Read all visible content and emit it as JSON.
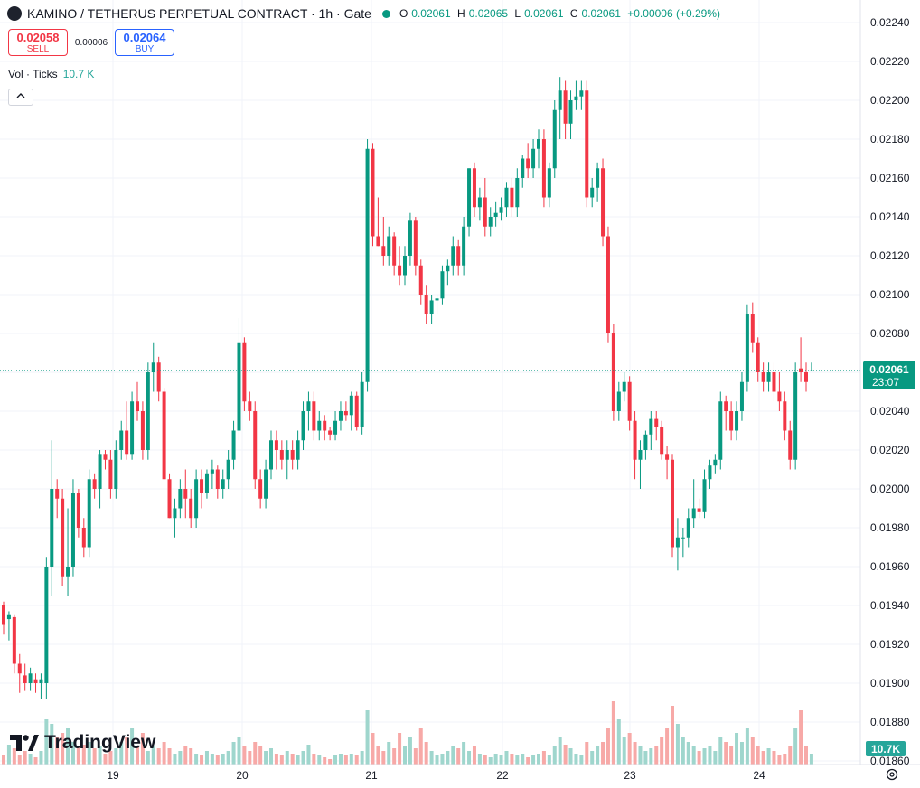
{
  "header": {
    "title": "KAMINO / TETHERUS PERPETUAL CONTRACT · 1h · Gate",
    "open_label": "O",
    "open": "0.02061",
    "high_label": "H",
    "high": "0.02065",
    "low_label": "L",
    "low": "0.02061",
    "close_label": "C",
    "close": "0.02061",
    "change": "+0.00006 (+0.29%)"
  },
  "trade": {
    "sell_price": "0.02058",
    "sell_label": "SELL",
    "spread": "0.00006",
    "buy_price": "0.02064",
    "buy_label": "BUY"
  },
  "volume_legend": {
    "label": "Vol · Ticks",
    "value": "10.7 K"
  },
  "brand": "TradingView",
  "colors": {
    "up": "#089981",
    "down": "#f23645",
    "vol_up": "#9fd6cd",
    "vol_down": "#f7a9a7",
    "grid": "#f0f3fa"
  },
  "icons": {
    "collapse": "chevron-up-icon",
    "settings": "gear-icon",
    "logo": "tradingview-logo-icon"
  },
  "chart_data": {
    "type": "candlestick",
    "y_ticks": [
      "0.02240",
      "0.02220",
      "0.02200",
      "0.02180",
      "0.02160",
      "0.02140",
      "0.02120",
      "0.02100",
      "0.02080",
      "0.02060",
      "0.02040",
      "0.02020",
      "0.02000",
      "0.01980",
      "0.01960",
      "0.01940",
      "0.01920",
      "0.01900",
      "0.01880",
      "0.01860"
    ],
    "ylim": [
      0.01858,
      0.02245
    ],
    "x_ticks": [
      "19",
      "20",
      "21",
      "22",
      "23",
      "24"
    ],
    "last_price": "0.02061",
    "countdown": "23:07",
    "volume_last": "10.7K",
    "candles": [
      [
        0.0194,
        0.01942,
        0.01925,
        0.0193
      ],
      [
        0.01933,
        0.01937,
        0.01922,
        0.01935
      ],
      [
        0.01934,
        0.01935,
        0.01905,
        0.0191
      ],
      [
        0.0191,
        0.01915,
        0.01895,
        0.01905
      ],
      [
        0.01904,
        0.0191,
        0.01896,
        0.019
      ],
      [
        0.019,
        0.01908,
        0.01896,
        0.01905
      ],
      [
        0.01902,
        0.01905,
        0.01895,
        0.019
      ],
      [
        0.019,
        0.01905,
        0.01892,
        0.01902
      ],
      [
        0.019,
        0.01965,
        0.01892,
        0.0196
      ],
      [
        0.0196,
        0.02025,
        0.01945,
        0.02
      ],
      [
        0.02,
        0.02005,
        0.01985,
        0.01995
      ],
      [
        0.01995,
        0.02,
        0.0195,
        0.01955
      ],
      [
        0.01955,
        0.0199,
        0.01945,
        0.0196
      ],
      [
        0.0196,
        0.02005,
        0.01955,
        0.01998
      ],
      [
        0.01998,
        0.02,
        0.01975,
        0.0198
      ],
      [
        0.0198,
        0.01985,
        0.01965,
        0.0197
      ],
      [
        0.0197,
        0.0201,
        0.01965,
        0.02005
      ],
      [
        0.02005,
        0.02008,
        0.01995,
        0.02
      ],
      [
        0.02,
        0.0202,
        0.0199,
        0.02018
      ],
      [
        0.02018,
        0.0202,
        0.0201,
        0.02015
      ],
      [
        0.02015,
        0.0202,
        0.01995,
        0.02
      ],
      [
        0.02,
        0.02025,
        0.01995,
        0.0202
      ],
      [
        0.0202,
        0.02035,
        0.02015,
        0.0203
      ],
      [
        0.0203,
        0.02045,
        0.02015,
        0.02018
      ],
      [
        0.02018,
        0.0205,
        0.02015,
        0.02045
      ],
      [
        0.02045,
        0.02055,
        0.02035,
        0.0204
      ],
      [
        0.0204,
        0.02045,
        0.02015,
        0.0202
      ],
      [
        0.0202,
        0.02065,
        0.02015,
        0.0206
      ],
      [
        0.0206,
        0.02075,
        0.0205,
        0.02065
      ],
      [
        0.02065,
        0.02068,
        0.02045,
        0.0205
      ],
      [
        0.0205,
        0.02052,
        0.02005,
        0.02005
      ],
      [
        0.02005,
        0.02008,
        0.01985,
        0.01985
      ],
      [
        0.01985,
        0.01995,
        0.01975,
        0.0199
      ],
      [
        0.0199,
        0.02005,
        0.01985,
        0.02
      ],
      [
        0.02,
        0.0201,
        0.01985,
        0.01995
      ],
      [
        0.01995,
        0.02,
        0.0198,
        0.01985
      ],
      [
        0.01985,
        0.0201,
        0.0198,
        0.02005
      ],
      [
        0.02005,
        0.0201,
        0.0199,
        0.01998
      ],
      [
        0.01998,
        0.0201,
        0.01995,
        0.02008
      ],
      [
        0.02008,
        0.02015,
        0.02,
        0.0201
      ],
      [
        0.0201,
        0.02012,
        0.01995,
        0.02
      ],
      [
        0.02,
        0.0201,
        0.01995,
        0.02005
      ],
      [
        0.02005,
        0.0202,
        0.02,
        0.02015
      ],
      [
        0.02015,
        0.02035,
        0.0201,
        0.0203
      ],
      [
        0.0203,
        0.02088,
        0.02025,
        0.02075
      ],
      [
        0.02075,
        0.02078,
        0.0204,
        0.02045
      ],
      [
        0.02045,
        0.0205,
        0.02035,
        0.0204
      ],
      [
        0.0204,
        0.02045,
        0.02,
        0.02005
      ],
      [
        0.02005,
        0.0201,
        0.0199,
        0.01995
      ],
      [
        0.01995,
        0.02015,
        0.0199,
        0.0201
      ],
      [
        0.0201,
        0.0203,
        0.02005,
        0.02025
      ],
      [
        0.02025,
        0.0203,
        0.0201,
        0.0202
      ],
      [
        0.0202,
        0.02025,
        0.0201,
        0.02015
      ],
      [
        0.02015,
        0.02025,
        0.02005,
        0.0202
      ],
      [
        0.0202,
        0.02025,
        0.0201,
        0.02015
      ],
      [
        0.02015,
        0.0203,
        0.0201,
        0.02025
      ],
      [
        0.02025,
        0.02045,
        0.0202,
        0.0204
      ],
      [
        0.0204,
        0.0205,
        0.0203,
        0.02045
      ],
      [
        0.02045,
        0.0205,
        0.02025,
        0.0203
      ],
      [
        0.0203,
        0.0204,
        0.02025,
        0.02035
      ],
      [
        0.02035,
        0.02038,
        0.02025,
        0.0203
      ],
      [
        0.0203,
        0.02032,
        0.02025,
        0.02028
      ],
      [
        0.02028,
        0.0204,
        0.02025,
        0.02035
      ],
      [
        0.02035,
        0.02045,
        0.0203,
        0.0204
      ],
      [
        0.0204,
        0.02045,
        0.02035,
        0.02038
      ],
      [
        0.02038,
        0.0205,
        0.0203,
        0.02048
      ],
      [
        0.02048,
        0.0205,
        0.0203,
        0.02032
      ],
      [
        0.02032,
        0.0206,
        0.02028,
        0.02055
      ],
      [
        0.02055,
        0.0218,
        0.0205,
        0.02175
      ],
      [
        0.02175,
        0.02178,
        0.02125,
        0.0213
      ],
      [
        0.0213,
        0.0215,
        0.02125,
        0.02125
      ],
      [
        0.02125,
        0.0214,
        0.02115,
        0.0212
      ],
      [
        0.0212,
        0.02135,
        0.02115,
        0.0213
      ],
      [
        0.0213,
        0.02132,
        0.0211,
        0.02115
      ],
      [
        0.02115,
        0.02125,
        0.02105,
        0.0211
      ],
      [
        0.0211,
        0.02125,
        0.02105,
        0.0212
      ],
      [
        0.0212,
        0.02142,
        0.02115,
        0.02138
      ],
      [
        0.02138,
        0.0214,
        0.0211,
        0.02115
      ],
      [
        0.02115,
        0.02118,
        0.02095,
        0.021
      ],
      [
        0.021,
        0.02105,
        0.02085,
        0.0209
      ],
      [
        0.0209,
        0.021,
        0.02085,
        0.02097
      ],
      [
        0.02097,
        0.021,
        0.0209,
        0.02098
      ],
      [
        0.02098,
        0.02115,
        0.02095,
        0.02112
      ],
      [
        0.02112,
        0.02118,
        0.02105,
        0.02115
      ],
      [
        0.02115,
        0.0213,
        0.0211,
        0.02125
      ],
      [
        0.02125,
        0.02128,
        0.0211,
        0.02115
      ],
      [
        0.02115,
        0.0214,
        0.0211,
        0.02135
      ],
      [
        0.02135,
        0.02165,
        0.0213,
        0.02165
      ],
      [
        0.02165,
        0.02168,
        0.0214,
        0.02145
      ],
      [
        0.02145,
        0.02155,
        0.02138,
        0.0215
      ],
      [
        0.0215,
        0.0216,
        0.0213,
        0.02135
      ],
      [
        0.02135,
        0.02145,
        0.0213,
        0.0214
      ],
      [
        0.0214,
        0.02148,
        0.02135,
        0.02142
      ],
      [
        0.02142,
        0.0215,
        0.02138,
        0.02145
      ],
      [
        0.02145,
        0.02158,
        0.0214,
        0.02155
      ],
      [
        0.02155,
        0.0216,
        0.0214,
        0.02145
      ],
      [
        0.02145,
        0.02165,
        0.0214,
        0.0216
      ],
      [
        0.0216,
        0.02172,
        0.02155,
        0.0217
      ],
      [
        0.0217,
        0.02178,
        0.0216,
        0.02165
      ],
      [
        0.02165,
        0.0218,
        0.0216,
        0.02175
      ],
      [
        0.02175,
        0.02185,
        0.02165,
        0.0218
      ],
      [
        0.0218,
        0.02185,
        0.02145,
        0.0215
      ],
      [
        0.0215,
        0.02168,
        0.02145,
        0.02165
      ],
      [
        0.02165,
        0.022,
        0.0216,
        0.02195
      ],
      [
        0.02195,
        0.02212,
        0.0218,
        0.02205
      ],
      [
        0.02205,
        0.0221,
        0.0218,
        0.02188
      ],
      [
        0.02188,
        0.02205,
        0.0218,
        0.022
      ],
      [
        0.022,
        0.0221,
        0.02195,
        0.02202
      ],
      [
        0.02202,
        0.0221,
        0.02195,
        0.02205
      ],
      [
        0.02205,
        0.0221,
        0.02145,
        0.0215
      ],
      [
        0.0215,
        0.0216,
        0.02145,
        0.02155
      ],
      [
        0.02155,
        0.02168,
        0.02148,
        0.02165
      ],
      [
        0.02165,
        0.0217,
        0.02125,
        0.0213
      ],
      [
        0.0213,
        0.02135,
        0.02075,
        0.0208
      ],
      [
        0.0208,
        0.02085,
        0.02035,
        0.0204
      ],
      [
        0.0204,
        0.02055,
        0.02035,
        0.0205
      ],
      [
        0.0205,
        0.0206,
        0.02045,
        0.02055
      ],
      [
        0.02055,
        0.02058,
        0.0203,
        0.02035
      ],
      [
        0.02035,
        0.0204,
        0.02005,
        0.02015
      ],
      [
        0.02015,
        0.02025,
        0.02,
        0.0202
      ],
      [
        0.0202,
        0.0203,
        0.02015,
        0.02028
      ],
      [
        0.02028,
        0.0204,
        0.0202,
        0.02036
      ],
      [
        0.02036,
        0.0204,
        0.02025,
        0.02032
      ],
      [
        0.02032,
        0.02035,
        0.02015,
        0.02018
      ],
      [
        0.02018,
        0.02022,
        0.02005,
        0.02015
      ],
      [
        0.02015,
        0.02018,
        0.01965,
        0.0197
      ],
      [
        0.0197,
        0.01985,
        0.01958,
        0.01975
      ],
      [
        0.01975,
        0.0198,
        0.01965,
        0.01975
      ],
      [
        0.01975,
        0.0199,
        0.0197,
        0.01985
      ],
      [
        0.01985,
        0.02005,
        0.0198,
        0.0199
      ],
      [
        0.0199,
        0.01995,
        0.01985,
        0.01988
      ],
      [
        0.01988,
        0.0201,
        0.01985,
        0.02005
      ],
      [
        0.02005,
        0.02015,
        0.02,
        0.02012
      ],
      [
        0.02012,
        0.02018,
        0.02008,
        0.02015
      ],
      [
        0.02015,
        0.0205,
        0.0201,
        0.02045
      ],
      [
        0.02045,
        0.02048,
        0.0203,
        0.0204
      ],
      [
        0.0204,
        0.02045,
        0.02025,
        0.0203
      ],
      [
        0.0203,
        0.02045,
        0.02025,
        0.0204
      ],
      [
        0.0204,
        0.0206,
        0.02035,
        0.02055
      ],
      [
        0.02055,
        0.02095,
        0.0205,
        0.0209
      ],
      [
        0.0209,
        0.02096,
        0.0207,
        0.02075
      ],
      [
        0.02075,
        0.02078,
        0.02055,
        0.0206
      ],
      [
        0.0206,
        0.02065,
        0.0205,
        0.02055
      ],
      [
        0.02055,
        0.02065,
        0.0205,
        0.0206
      ],
      [
        0.0206,
        0.02065,
        0.02045,
        0.0205
      ],
      [
        0.0205,
        0.0206,
        0.0204,
        0.02045
      ],
      [
        0.02045,
        0.0205,
        0.02025,
        0.0203
      ],
      [
        0.0203,
        0.02035,
        0.0201,
        0.02015
      ],
      [
        0.02015,
        0.02065,
        0.0201,
        0.0206
      ],
      [
        0.02062,
        0.02078,
        0.02055,
        0.0206
      ],
      [
        0.0206,
        0.02065,
        0.0205,
        0.02055
      ],
      [
        0.02061,
        0.02065,
        0.02061,
        0.02061
      ]
    ],
    "volumes": [
      0.1,
      0.22,
      0.18,
      0.1,
      0.15,
      0.12,
      0.08,
      0.15,
      0.5,
      0.45,
      0.3,
      0.35,
      0.4,
      0.25,
      0.2,
      0.22,
      0.25,
      0.18,
      0.2,
      0.12,
      0.15,
      0.18,
      0.25,
      0.3,
      0.4,
      0.2,
      0.35,
      0.15,
      0.2,
      0.18,
      0.25,
      0.18,
      0.12,
      0.15,
      0.2,
      0.18,
      0.12,
      0.1,
      0.15,
      0.12,
      0.1,
      0.12,
      0.15,
      0.25,
      0.3,
      0.2,
      0.15,
      0.25,
      0.2,
      0.15,
      0.18,
      0.12,
      0.1,
      0.15,
      0.12,
      0.1,
      0.15,
      0.22,
      0.12,
      0.1,
      0.08,
      0.06,
      0.1,
      0.12,
      0.1,
      0.12,
      0.1,
      0.15,
      0.6,
      0.35,
      0.2,
      0.15,
      0.25,
      0.18,
      0.35,
      0.2,
      0.3,
      0.18,
      0.4,
      0.25,
      0.15,
      0.1,
      0.12,
      0.15,
      0.2,
      0.18,
      0.25,
      0.15,
      0.2,
      0.12,
      0.1,
      0.08,
      0.12,
      0.1,
      0.15,
      0.12,
      0.1,
      0.12,
      0.08,
      0.1,
      0.12,
      0.15,
      0.1,
      0.2,
      0.3,
      0.22,
      0.18,
      0.12,
      0.1,
      0.25,
      0.15,
      0.2,
      0.25,
      0.4,
      0.7,
      0.5,
      0.3,
      0.35,
      0.25,
      0.2,
      0.15,
      0.18,
      0.2,
      0.3,
      0.4,
      0.65,
      0.45,
      0.3,
      0.25,
      0.2,
      0.15,
      0.18,
      0.2,
      0.15,
      0.3,
      0.25,
      0.2,
      0.35,
      0.25,
      0.4,
      0.3,
      0.2,
      0.15,
      0.18,
      0.15,
      0.1,
      0.12,
      0.2,
      0.4,
      0.6,
      0.2,
      0.12
    ]
  }
}
